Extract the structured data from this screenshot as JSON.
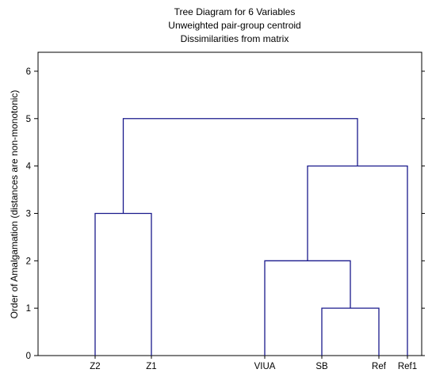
{
  "chart_data": {
    "type": "dendrogram",
    "title": [
      "Tree Diagram for 6   Variables",
      "Unweighted pair-group centroid",
      "Dissimilarities from matrix"
    ],
    "xlabel": "",
    "ylabel": "Order of Amalgamation (distances are non-monotonic)",
    "ylim": [
      0,
      6.4
    ],
    "yticks": [
      0,
      1,
      2,
      3,
      4,
      5,
      6
    ],
    "leaves": [
      "Z2",
      "Z1",
      "VIUA",
      "SB",
      "Ref",
      "Ref1"
    ],
    "merges": [
      {
        "left": "SB",
        "right": "Ref",
        "height": 1
      },
      {
        "left": "VIUA",
        "right": "SB+Ref",
        "height": 2
      },
      {
        "left": "Z2",
        "right": "Z1",
        "height": 3
      },
      {
        "left": "VIUA+SB+Ref",
        "right": "Ref1",
        "height": 4
      },
      {
        "left": "Z2+Z1",
        "right": "VIUA+SB+Ref+Ref1",
        "height": 5
      }
    ],
    "line_color": "#1a1a8c",
    "grid": false
  }
}
